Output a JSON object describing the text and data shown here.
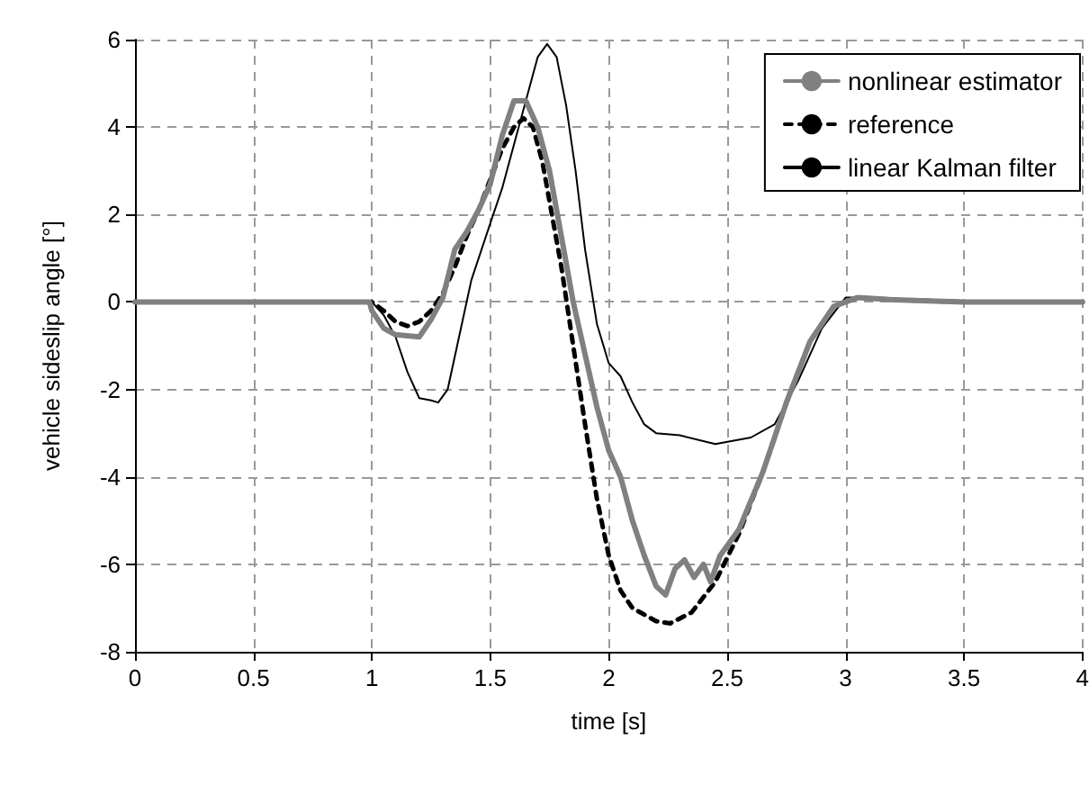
{
  "chart_data": {
    "type": "line",
    "xlabel": "time [s]",
    "ylabel": "vehicle sideslip angle [°]",
    "xlim": [
      0,
      4
    ],
    "xticks": [
      0,
      0.5,
      1,
      1.5,
      2,
      2.5,
      3,
      3.5,
      4
    ],
    "ylim": [
      -8,
      6
    ],
    "yticks": [
      -8,
      -6,
      -4,
      -2,
      0,
      2,
      4,
      6
    ],
    "grid": true,
    "legend": "top right",
    "marker": "none",
    "series": [
      {
        "name": "nonlinear estimator",
        "color": "#808080",
        "line_style": "solid",
        "x": [
          0,
          0.99,
          1.0,
          1.05,
          1.1,
          1.2,
          1.25,
          1.3,
          1.35,
          1.4,
          1.45,
          1.5,
          1.55,
          1.6,
          1.65,
          1.7,
          1.75,
          1.8,
          1.85,
          1.9,
          1.95,
          2.0,
          2.05,
          2.1,
          2.15,
          2.2,
          2.24,
          2.28,
          2.32,
          2.36,
          2.4,
          2.43,
          2.47,
          2.55,
          2.65,
          2.75,
          2.85,
          2.95,
          3.05,
          3.2,
          3.5,
          4
        ],
        "values": [
          0,
          0,
          -0.2,
          -0.6,
          -0.75,
          -0.8,
          -0.4,
          0.1,
          1.2,
          1.6,
          2.1,
          2.7,
          3.8,
          4.6,
          4.6,
          4.0,
          3.0,
          1.5,
          0,
          -1.2,
          -2.4,
          -3.4,
          -4.0,
          -5.0,
          -5.8,
          -6.5,
          -6.7,
          -6.1,
          -5.9,
          -6.3,
          -6.0,
          -6.4,
          -5.8,
          -5.2,
          -3.9,
          -2.3,
          -0.9,
          -0.1,
          0.1,
          0.05,
          0,
          0
        ]
      },
      {
        "name": "reference",
        "color": "#000000",
        "line_style": "dashed",
        "x": [
          0,
          1.0,
          1.05,
          1.1,
          1.15,
          1.2,
          1.25,
          1.3,
          1.35,
          1.4,
          1.45,
          1.5,
          1.55,
          1.6,
          1.64,
          1.68,
          1.72,
          1.76,
          1.8,
          1.85,
          1.9,
          1.95,
          2.0,
          2.05,
          2.1,
          2.2,
          2.26,
          2.35,
          2.45,
          2.55,
          2.65,
          2.75,
          2.85,
          2.95,
          3.05,
          3.2,
          3.5,
          4
        ],
        "values": [
          0,
          0,
          -0.2,
          -0.45,
          -0.55,
          -0.45,
          -0.2,
          0.2,
          0.8,
          1.5,
          2.1,
          2.8,
          3.5,
          4.0,
          4.2,
          4.0,
          3.2,
          2.0,
          0.8,
          -1.0,
          -2.8,
          -4.5,
          -5.8,
          -6.6,
          -7.0,
          -7.3,
          -7.35,
          -7.1,
          -6.4,
          -5.3,
          -3.9,
          -2.3,
          -0.9,
          -0.1,
          0.1,
          0.05,
          0,
          0
        ]
      },
      {
        "name": "linear Kalman filter",
        "color": "#000000",
        "line_style": "solid",
        "x": [
          0,
          1.0,
          1.05,
          1.1,
          1.15,
          1.2,
          1.25,
          1.28,
          1.32,
          1.38,
          1.42,
          1.5,
          1.55,
          1.6,
          1.65,
          1.7,
          1.74,
          1.78,
          1.82,
          1.86,
          1.9,
          1.95,
          2.0,
          2.05,
          2.1,
          2.15,
          2.2,
          2.3,
          2.45,
          2.6,
          2.7,
          2.8,
          2.9,
          3.0,
          3.1,
          3.5,
          4
        ],
        "values": [
          0,
          0,
          -0.3,
          -0.8,
          -1.6,
          -2.2,
          -2.25,
          -2.3,
          -2.0,
          -0.5,
          0.5,
          1.8,
          2.6,
          3.6,
          4.6,
          5.6,
          5.9,
          5.6,
          4.5,
          3.0,
          1.2,
          -0.5,
          -1.4,
          -1.7,
          -2.3,
          -2.8,
          -3.0,
          -3.05,
          -3.25,
          -3.1,
          -2.8,
          -1.8,
          -0.6,
          0.1,
          0.1,
          0,
          0
        ]
      }
    ]
  }
}
